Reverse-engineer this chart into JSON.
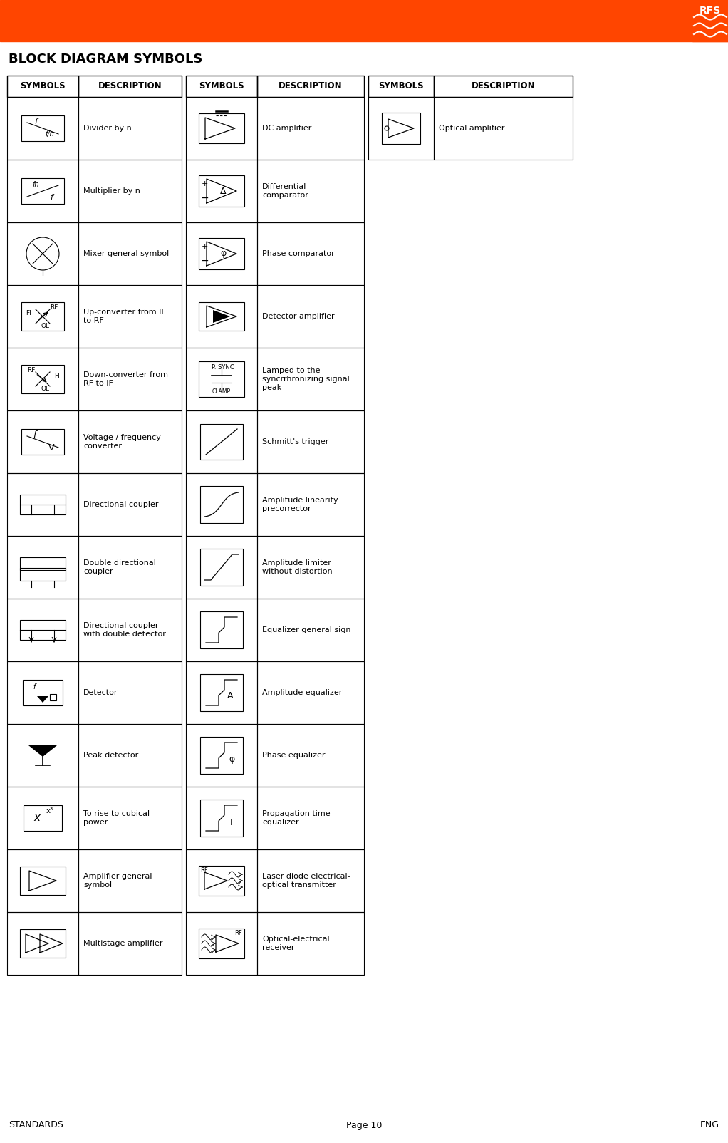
{
  "bg_color": "#ffffff",
  "header_orange": "#ff4500",
  "title": "BLOCK DIAGRAM SYMBOLS",
  "footer_left": "STANDARDS",
  "footer_center": "Page 10",
  "footer_right": "ENG",
  "rows": [
    {
      "col1_sym": "divider",
      "col1_desc": "Divider by n",
      "col2_sym": "dc_amp",
      "col2_desc": "DC amplifier",
      "col3_sym": "opt_amp",
      "col3_desc": "Optical amplifier"
    },
    {
      "col1_sym": "multiplier",
      "col1_desc": "Multiplier by n",
      "col2_sym": "diff_comp",
      "col2_desc": "Differential\ncomparator",
      "col3_sym": "",
      "col3_desc": ""
    },
    {
      "col1_sym": "mixer",
      "col1_desc": "Mixer general symbol",
      "col2_sym": "phase_comp",
      "col2_desc": "Phase comparator",
      "col3_sym": "",
      "col3_desc": ""
    },
    {
      "col1_sym": "up_conv",
      "col1_desc": "Up-converter from IF\nto RF",
      "col2_sym": "det_amp",
      "col2_desc": "Detector amplifier",
      "col3_sym": "",
      "col3_desc": ""
    },
    {
      "col1_sym": "down_conv",
      "col1_desc": "Down-converter from\nRF to IF",
      "col2_sym": "clamp",
      "col2_desc": "Lamped to the\nsyncrrhronizing signal\npeak",
      "col3_sym": "",
      "col3_desc": ""
    },
    {
      "col1_sym": "vf_conv",
      "col1_desc": "Voltage / frequency\nconverter",
      "col2_sym": "schmitt",
      "col2_desc": "Schmitt's trigger",
      "col3_sym": "",
      "col3_desc": ""
    },
    {
      "col1_sym": "dir_coup",
      "col1_desc": "Directional coupler",
      "col2_sym": "amp_lin",
      "col2_desc": "Amplitude linearity\nprecorrector",
      "col3_sym": "",
      "col3_desc": ""
    },
    {
      "col1_sym": "dbl_dir_coup",
      "col1_desc": "Double directional\ncoupler",
      "col2_sym": "amp_lim",
      "col2_desc": "Amplitude limiter\nwithout distortion",
      "col3_sym": "",
      "col3_desc": ""
    },
    {
      "col1_sym": "dir_coup_det",
      "col1_desc": "Directional coupler\nwith double detector",
      "col2_sym": "equalizer_gen",
      "col2_desc": "Equalizer general sign",
      "col3_sym": "",
      "col3_desc": ""
    },
    {
      "col1_sym": "detector",
      "col1_desc": "Detector",
      "col2_sym": "amp_eq",
      "col2_desc": "Amplitude equalizer",
      "col3_sym": "",
      "col3_desc": ""
    },
    {
      "col1_sym": "peak_det",
      "col1_desc": "Peak detector",
      "col2_sym": "phase_eq",
      "col2_desc": "Phase equalizer",
      "col3_sym": "",
      "col3_desc": ""
    },
    {
      "col1_sym": "cubic",
      "col1_desc": "To rise to cubical\npower",
      "col2_sym": "prop_eq",
      "col2_desc": "Propagation time\nequalizer",
      "col3_sym": "",
      "col3_desc": ""
    },
    {
      "col1_sym": "amp_gen",
      "col1_desc": "Amplifier general\nsymbol",
      "col2_sym": "laser",
      "col2_desc": "Laser diode electrical-\noptical transmitter",
      "col3_sym": "",
      "col3_desc": ""
    },
    {
      "col1_sym": "multi_amp",
      "col1_desc": "Multistage amplifier",
      "col2_sym": "opt_rx",
      "col2_desc": "Optical-electrical\nreceiver",
      "col3_sym": "",
      "col3_desc": ""
    }
  ]
}
